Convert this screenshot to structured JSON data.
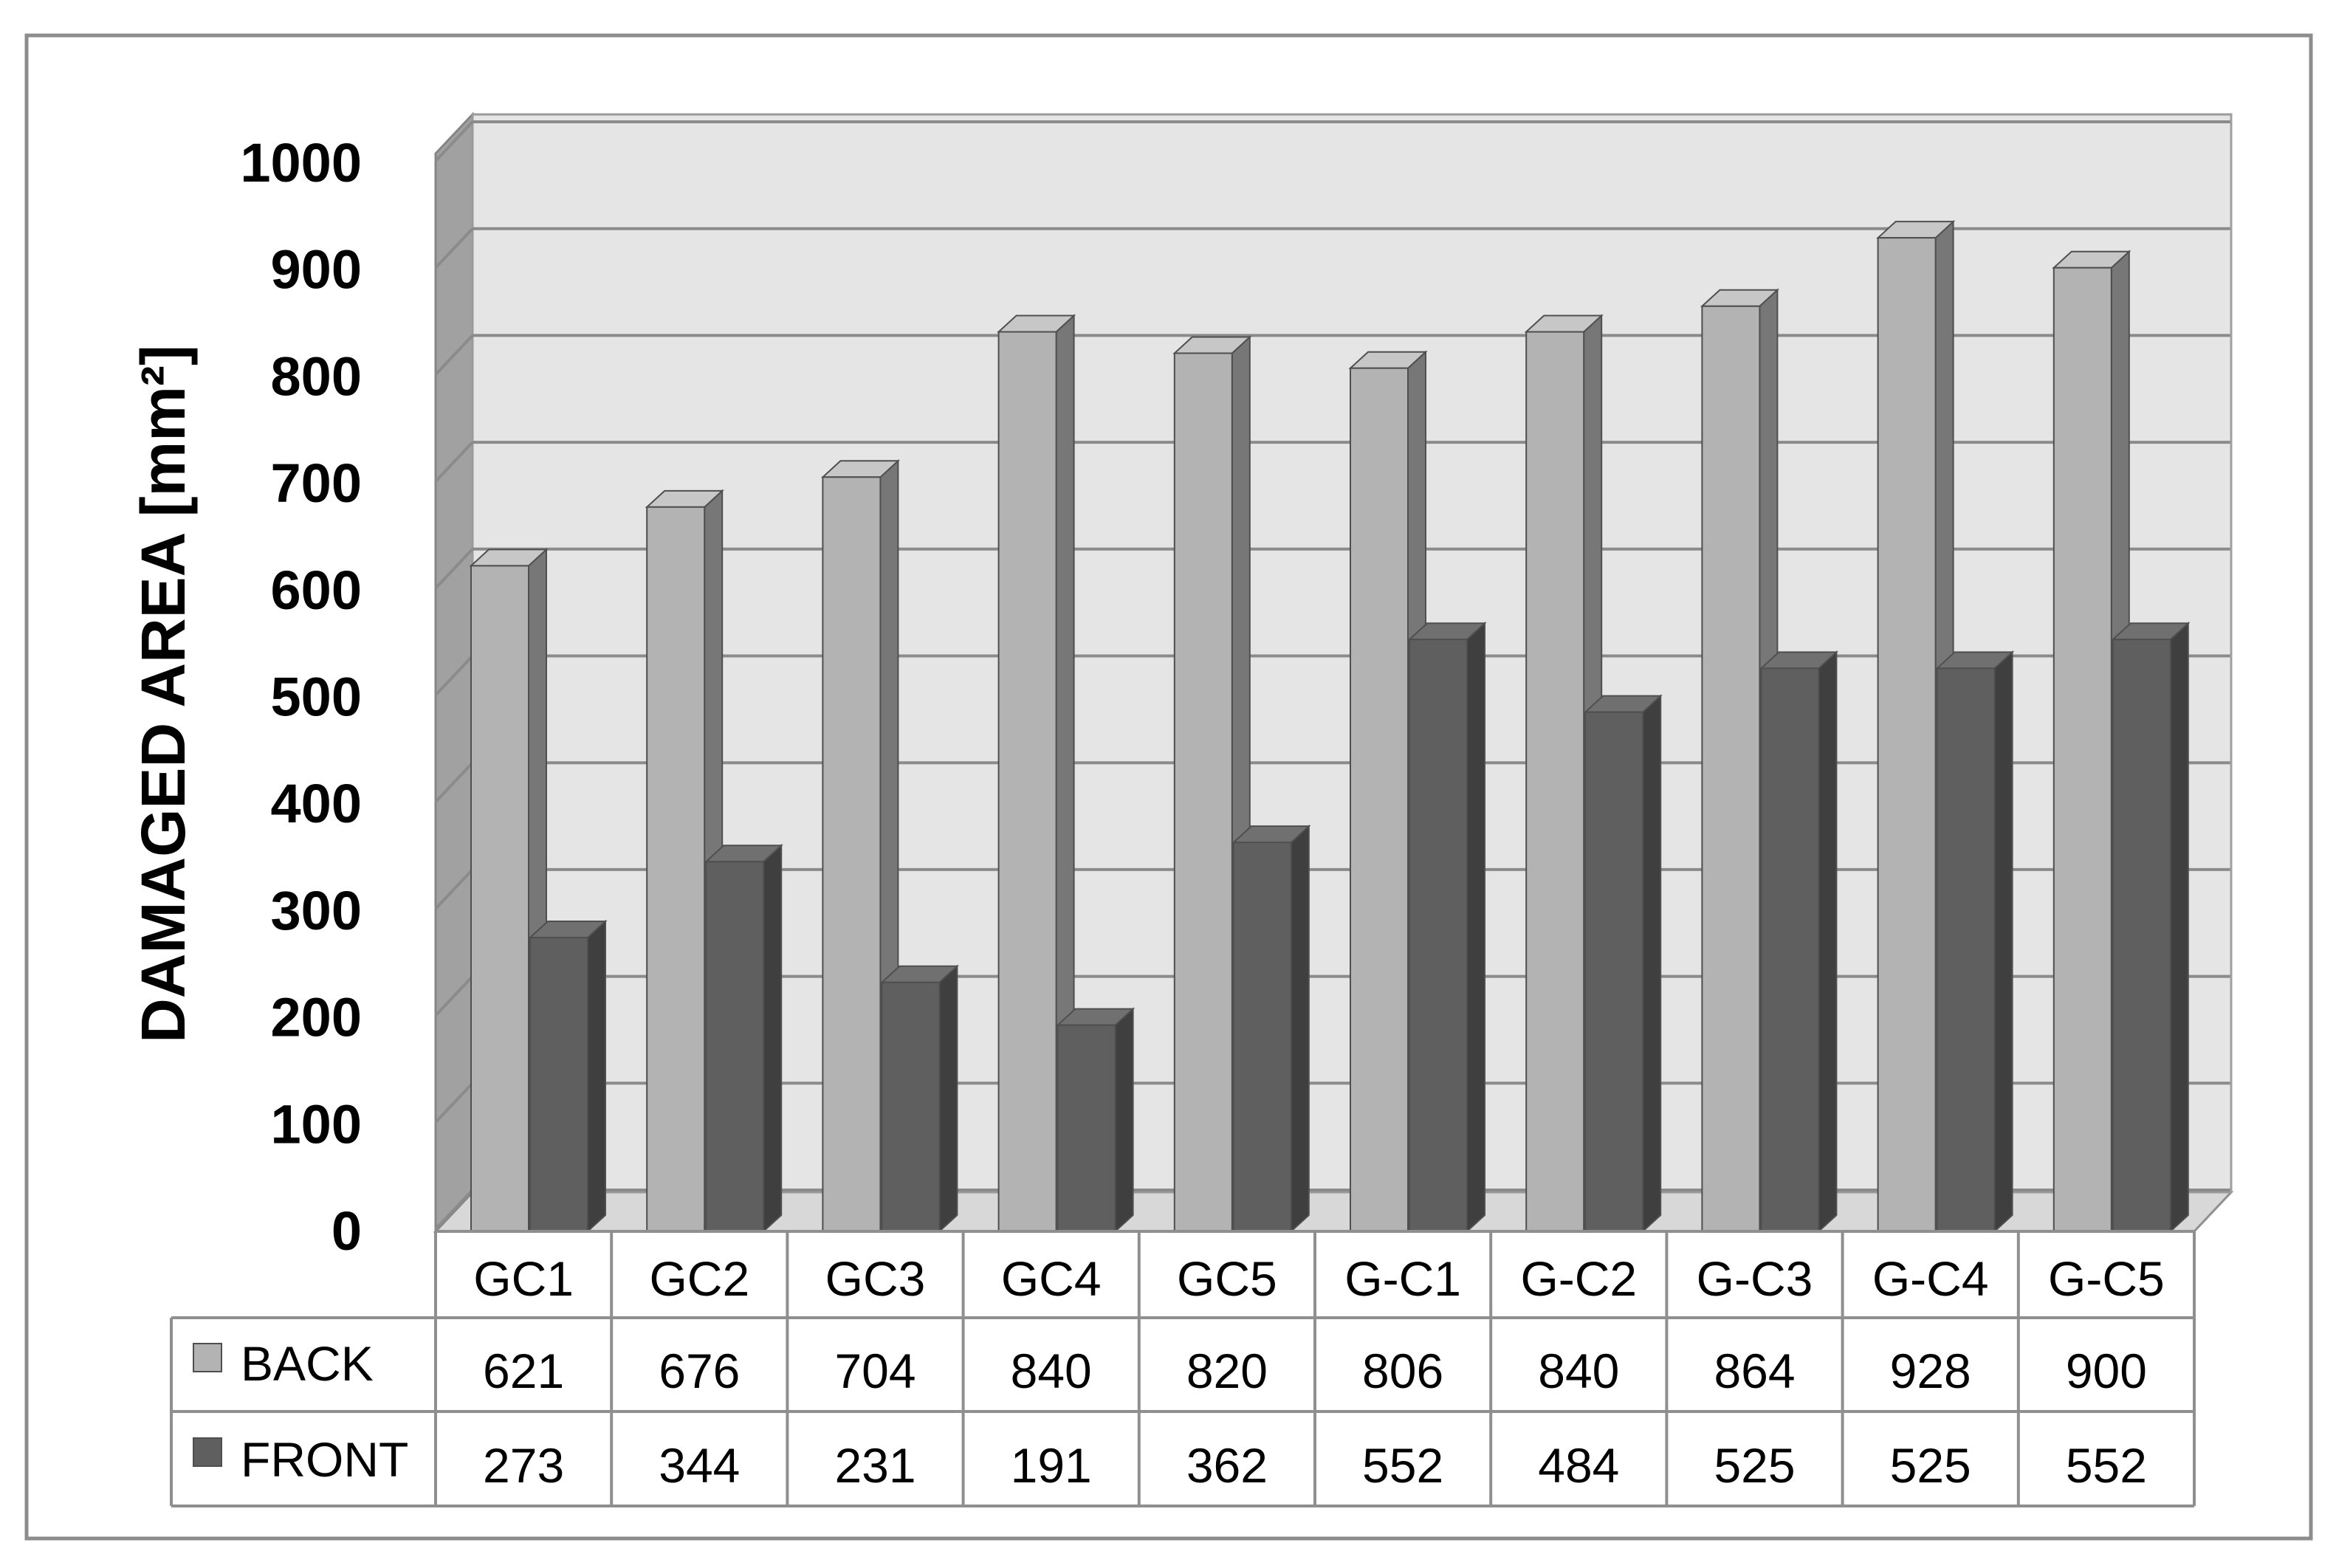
{
  "chart_data": {
    "type": "bar",
    "title": "",
    "xlabel": "",
    "ylabel": "DAMAGED AREA [mm²]",
    "ylim": [
      0,
      1000
    ],
    "yticks": [
      0,
      100,
      200,
      300,
      400,
      500,
      600,
      700,
      800,
      900,
      1000
    ],
    "grid": true,
    "legend": "data table",
    "categories": [
      "GC1",
      "GC2",
      "GC3",
      "GC4",
      "GC5",
      "G-C1",
      "G-C2",
      "G-C3",
      "G-C4",
      "G-C5"
    ],
    "series": [
      {
        "name": "BACK",
        "color": "#b3b3b3",
        "values": [
          621,
          676,
          704,
          840,
          820,
          806,
          840,
          864,
          928,
          900
        ]
      },
      {
        "name": "FRONT",
        "color": "#5f5f5f",
        "values": [
          273,
          344,
          231,
          191,
          362,
          552,
          484,
          525,
          525,
          552
        ]
      }
    ]
  }
}
